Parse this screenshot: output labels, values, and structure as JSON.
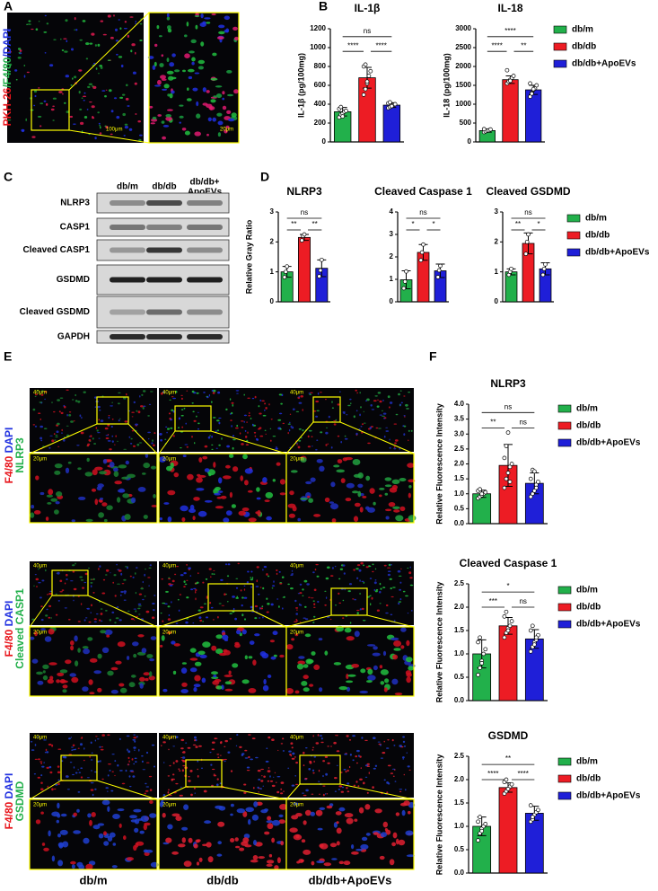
{
  "panel_letters": [
    "A",
    "B",
    "C",
    "D",
    "E",
    "F"
  ],
  "panel_a": {
    "stain": [
      {
        "text": "PKH-26",
        "color": "#e8141b"
      },
      {
        "text": "/F4/80",
        "color": "#22b04b"
      },
      {
        "text": "/DAPI",
        "color": "#2030e0"
      }
    ],
    "scale_labels": [
      "100μm",
      "20μm"
    ]
  },
  "panel_c": {
    "columns": [
      [
        "db/m"
      ],
      [
        "db/db"
      ],
      [
        "db/db+",
        "ApoEVs"
      ]
    ],
    "rows": [
      "NLRP3",
      "CASP1",
      "Cleaved CASP1",
      "GSDMD",
      "Cleaved GSDMD",
      "GAPDH"
    ]
  },
  "panel_e": {
    "rows": [
      [
        [
          {
            "text": "F4/80",
            "color": "#e8141b"
          },
          {
            "text": " DAPI",
            "color": "#2030e0"
          }
        ],
        [
          {
            "text": "NLRP3",
            "color": "#22b04b"
          }
        ]
      ],
      [
        [
          {
            "text": "F4/80",
            "color": "#e8141b"
          },
          {
            "text": " DAPI",
            "color": "#2030e0"
          }
        ],
        [
          {
            "text": "Cleaved CASP1",
            "color": "#22b04b"
          }
        ]
      ],
      [
        [
          {
            "text": "F4/80",
            "color": "#e8141b"
          },
          {
            "text": " DAPI",
            "color": "#2030e0"
          }
        ],
        [
          {
            "text": "GSDMD",
            "color": "#22b04b"
          }
        ]
      ]
    ],
    "columns": [
      "db/m",
      "db/db",
      "db/db+ApoEVs"
    ],
    "scale_labels": [
      "40μm",
      "20μm"
    ]
  },
  "chart_data": [
    {
      "type": "bar",
      "title": "IL-1β",
      "ylabel": "IL-1β (pg/100mg)",
      "categories": [
        "db/m",
        "db/db",
        "db/db+ApoEVs"
      ],
      "colors": [
        "#22b04b",
        "#ed1c24",
        "#1f1fd8"
      ],
      "values": [
        320,
        680,
        390
      ],
      "errors": [
        45,
        110,
        25
      ],
      "points": [
        [
          260,
          290,
          300,
          320,
          330,
          350,
          370,
          270
        ],
        [
          500,
          560,
          620,
          700,
          750,
          800,
          820,
          640
        ],
        [
          360,
          370,
          380,
          390,
          400,
          410,
          420,
          380
        ]
      ],
      "ylim": [
        0,
        1200
      ],
      "yticks": [
        0,
        200,
        400,
        600,
        800,
        1000,
        1200
      ],
      "significance": [
        "ns",
        "****",
        "****"
      ]
    },
    {
      "type": "bar",
      "title": "IL-18",
      "ylabel": "IL-18 (pg/100mg)",
      "categories": [
        "db/m",
        "db/db",
        "db/db+ApoEVs"
      ],
      "colors": [
        "#22b04b",
        "#ed1c24",
        "#1f1fd8"
      ],
      "values": [
        300,
        1650,
        1380
      ],
      "errors": [
        40,
        100,
        120
      ],
      "points": [
        [
          260,
          280,
          300,
          310,
          330,
          340
        ],
        [
          1550,
          1600,
          1650,
          1700,
          1750,
          1900,
          1600,
          1620
        ],
        [
          1200,
          1300,
          1380,
          1420,
          1500,
          1550,
          1280,
          1400
        ]
      ],
      "ylim": [
        0,
        3000
      ],
      "yticks": [
        0,
        500,
        1000,
        1500,
        2000,
        2500,
        3000
      ],
      "significance": [
        "****",
        "****",
        "**"
      ],
      "legend": true
    },
    {
      "type": "bar",
      "title": "NLRP3",
      "ylabel": "Relative Gray Ratio",
      "categories": [
        "db/m",
        "db/db",
        "db/db+ApoEVs"
      ],
      "colors": [
        "#22b04b",
        "#ed1c24",
        "#1f1fd8"
      ],
      "values": [
        1.0,
        2.15,
        1.12
      ],
      "errors": [
        0.18,
        0.1,
        0.28
      ],
      "points": [
        [
          0.82,
          1.0,
          1.18
        ],
        [
          2.05,
          2.2,
          2.25
        ],
        [
          0.85,
          1.05,
          1.4
        ]
      ],
      "ylim": [
        0,
        3
      ],
      "yticks": [
        0,
        1,
        2,
        3
      ],
      "significance": [
        "ns",
        "**",
        "**"
      ]
    },
    {
      "type": "bar",
      "title": "Cleaved Caspase 1",
      "categories": [
        "db/m",
        "db/db",
        "db/db+ApoEVs"
      ],
      "colors": [
        "#22b04b",
        "#ed1c24",
        "#1f1fd8"
      ],
      "values": [
        0.98,
        2.2,
        1.38
      ],
      "errors": [
        0.4,
        0.35,
        0.3
      ],
      "points": [
        [
          0.6,
          0.9,
          1.35
        ],
        [
          1.85,
          2.2,
          2.55
        ],
        [
          1.1,
          1.4,
          1.6
        ]
      ],
      "ylim": [
        0,
        4
      ],
      "yticks": [
        0,
        1,
        2,
        3,
        4
      ],
      "significance": [
        "ns",
        "*",
        "*"
      ]
    },
    {
      "type": "bar",
      "title": "Cleaved GSDMD",
      "categories": [
        "db/m",
        "db/db",
        "db/db+ApoEVs"
      ],
      "colors": [
        "#22b04b",
        "#ed1c24",
        "#1f1fd8"
      ],
      "values": [
        1.0,
        1.95,
        1.1
      ],
      "errors": [
        0.1,
        0.35,
        0.2
      ],
      "points": [
        [
          0.9,
          1.0,
          1.1
        ],
        [
          1.6,
          2.0,
          2.25
        ],
        [
          0.9,
          1.1,
          1.25
        ]
      ],
      "ylim": [
        0,
        3
      ],
      "yticks": [
        0,
        1,
        2,
        3
      ],
      "significance": [
        "ns",
        "**",
        "*"
      ],
      "legend": true
    },
    {
      "type": "bar",
      "title": "NLRP3",
      "ylabel": "Relative Fluorescence Intensity",
      "categories": [
        "db/m",
        "db/db",
        "db/db+ApoEVs"
      ],
      "colors": [
        "#22b04b",
        "#ed1c24",
        "#1f1fd8"
      ],
      "values": [
        1.0,
        1.95,
        1.35
      ],
      "errors": [
        0.12,
        0.7,
        0.35
      ],
      "points": [
        [
          0.85,
          0.9,
          0.95,
          1.0,
          1.05,
          1.1,
          1.15,
          1.0
        ],
        [
          1.2,
          1.5,
          1.7,
          1.9,
          2.0,
          2.2,
          2.6,
          3.05,
          1.4
        ],
        [
          0.9,
          1.0,
          1.1,
          1.3,
          1.4,
          1.5,
          1.8,
          1.75,
          1.2
        ]
      ],
      "ylim": [
        0,
        4
      ],
      "yticks": [
        {
          "value": 0,
          "label": "0.0"
        },
        {
          "value": 0.5,
          "label": "0.5"
        },
        {
          "value": 1,
          "label": "1.0"
        },
        {
          "value": 1.5,
          "label": "1.5"
        },
        {
          "value": 2,
          "label": "2.0"
        },
        {
          "value": 2.5,
          "label": "2.5"
        },
        {
          "value": 3,
          "label": "3.0"
        },
        {
          "value": 3.5,
          "label": "3.5"
        },
        {
          "value": 4,
          "label": "4.0"
        }
      ],
      "significance": [
        "ns",
        "**",
        "ns"
      ],
      "legend": true
    },
    {
      "type": "bar",
      "title": "Cleaved Caspase 1",
      "ylabel": "Relative Fluorescence Intensity",
      "categories": [
        "db/m",
        "db/db",
        "db/db+ApoEVs"
      ],
      "colors": [
        "#22b04b",
        "#ed1c24",
        "#1f1fd8"
      ],
      "values": [
        1.0,
        1.6,
        1.32
      ],
      "errors": [
        0.3,
        0.18,
        0.2
      ],
      "points": [
        [
          0.55,
          0.7,
          0.85,
          1.0,
          1.1,
          1.25,
          1.35,
          0.8
        ],
        [
          1.35,
          1.45,
          1.55,
          1.6,
          1.7,
          1.8,
          1.9,
          1.5
        ],
        [
          1.05,
          1.15,
          1.25,
          1.3,
          1.4,
          1.5,
          1.6,
          1.2,
          1.35
        ]
      ],
      "ylim": [
        0,
        2.5
      ],
      "yticks": [
        {
          "value": 0,
          "label": "0.0"
        },
        {
          "value": 0.5,
          "label": "0.5"
        },
        {
          "value": 1,
          "label": "1.0"
        },
        {
          "value": 1.5,
          "label": "1.5"
        },
        {
          "value": 2,
          "label": "2.0"
        },
        {
          "value": 2.5,
          "label": "2.5"
        }
      ],
      "significance": [
        "*",
        "***",
        "ns"
      ],
      "legend": true
    },
    {
      "type": "bar",
      "title": "GSDMD",
      "ylabel": "Relative Fluorescence Intensity",
      "categories": [
        "db/m",
        "db/db",
        "db/db+ApoEVs"
      ],
      "colors": [
        "#22b04b",
        "#ed1c24",
        "#1f1fd8"
      ],
      "values": [
        1.0,
        1.83,
        1.28
      ],
      "errors": [
        0.2,
        0.1,
        0.15
      ],
      "points": [
        [
          0.7,
          0.85,
          0.95,
          1.0,
          1.05,
          1.1,
          1.2,
          0.9
        ],
        [
          1.7,
          1.75,
          1.8,
          1.85,
          1.9,
          1.95,
          2.0,
          1.8
        ],
        [
          1.1,
          1.15,
          1.25,
          1.3,
          1.35,
          1.45,
          1.2
        ]
      ],
      "ylim": [
        0,
        2.5
      ],
      "yticks": [
        {
          "value": 0,
          "label": "0.0"
        },
        {
          "value": 0.5,
          "label": "0.5"
        },
        {
          "value": 1,
          "label": "1.0"
        },
        {
          "value": 1.5,
          "label": "1.5"
        },
        {
          "value": 2,
          "label": "2.0"
        },
        {
          "value": 2.5,
          "label": "2.5"
        }
      ],
      "significance": [
        "**",
        "****",
        "****"
      ],
      "legend": true
    }
  ]
}
